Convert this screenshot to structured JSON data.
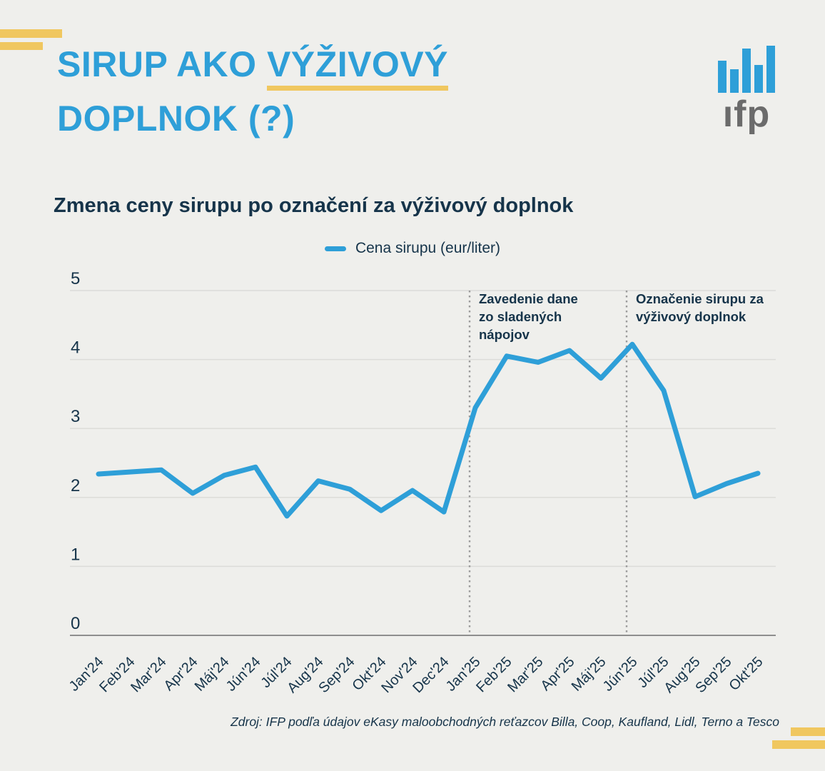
{
  "page": {
    "colors": {
      "background": "#EFEFEC",
      "accent_blue": "#2E9FD8",
      "accent_yellow": "#F0C75F",
      "dark_text": "#16344A",
      "logo_gray": "#6B6B6B"
    }
  },
  "header": {
    "title_line1_pre": "SIRUP AKO ",
    "title_underlined_word": "VÝŽIVOVÝ",
    "title_line2": "DOPLNOK (?)",
    "logo_text": "ıfp"
  },
  "chart": {
    "title": "Zmena ceny sirupu po označení za výživový doplnok",
    "legend_label": "Cena sirupu (eur/liter)",
    "source": "Zdroj: IFP podľa údajov eKasy maloobchodných reťazcov Billa, Coop, Kaufland, Lidl, Terno a Tesco"
  },
  "chart_data": {
    "type": "line",
    "title": "Zmena ceny sirupu po označení za výživový doplnok",
    "categories": [
      "Jan'24",
      "Feb'24",
      "Mar'24",
      "Apr'24",
      "Máj'24",
      "Jún'24",
      "Júl'24",
      "Aug'24",
      "Sep'24",
      "Okt'24",
      "Nov'24",
      "Dec'24",
      "Jan'25",
      "Feb'25",
      "Mar'25",
      "Apr'25",
      "Máj'25",
      "Jún'25",
      "Júl'25",
      "Aug'25",
      "Sep'25",
      "Okt'25"
    ],
    "series": [
      {
        "name": "Cena sirupu (eur/liter)",
        "color": "#2E9FD8",
        "values": [
          2.34,
          2.37,
          2.4,
          2.06,
          2.32,
          2.44,
          1.73,
          2.24,
          2.12,
          1.81,
          2.1,
          1.79,
          3.3,
          4.05,
          3.96,
          4.13,
          3.73,
          4.22,
          3.55,
          2.01,
          2.2,
          2.35
        ]
      }
    ],
    "ylim": [
      0,
      5
    ],
    "yticks": [
      0,
      1,
      2,
      3,
      4,
      5
    ],
    "grid": true,
    "legend_position": "top-center",
    "annotations": [
      {
        "at_category": "Jan'25",
        "label": "Zavedenie dane zo sladených nápojov",
        "lines": [
          "Zavedenie dane",
          "zo sladených",
          "nápojov"
        ]
      },
      {
        "at_category": "Jún'25",
        "label": "Označenie sirupu za výživový doplnok",
        "lines": [
          "Označenie sirupu za",
          "výživový doplnok"
        ]
      }
    ]
  }
}
